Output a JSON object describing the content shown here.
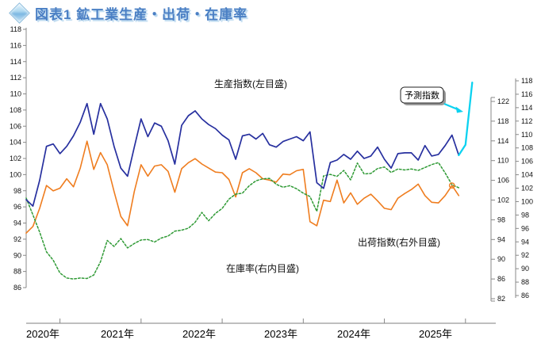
{
  "title": {
    "text": "図表1 鉱工業生産・出荷・在庫率",
    "icon": "diamond-icon"
  },
  "chart_data": {
    "type": "line",
    "title": "図表1 鉱工業生産・出荷・在庫率",
    "x_start_month": "2020-08",
    "x_tick_years": [
      "2020年",
      "2021年",
      "2022年",
      "2023年",
      "2024年",
      "2025年"
    ],
    "grid": false,
    "axes": {
      "left": {
        "min": 86,
        "max": 118,
        "step": 2,
        "used_by": "生産指数"
      },
      "right_inner": {
        "min": 82,
        "max": 122,
        "step": 4,
        "used_by": "在庫率"
      },
      "right_outer": {
        "min": 86,
        "max": 118,
        "step": 2,
        "used_by": "出荷指数"
      }
    },
    "series": [
      {
        "name": "生産指数(左目盛)",
        "axis": "left",
        "color": "#27309f",
        "line_style": "solid",
        "values": [
          96.9,
          96.1,
          99.3,
          103.5,
          103.8,
          102.6,
          103.5,
          104.8,
          106.5,
          108.8,
          105.0,
          108.8,
          106.9,
          103.5,
          100.8,
          99.8,
          103.4,
          106.9,
          104.7,
          106.4,
          106.0,
          104.2,
          101.3,
          106.1,
          107.3,
          107.9,
          106.9,
          106.2,
          105.7,
          104.9,
          104.3,
          101.9,
          104.8,
          105.0,
          104.4,
          105.1,
          103.7,
          103.4,
          104.1,
          104.4,
          104.7,
          104.2,
          105.3,
          99.0,
          98.3,
          101.5,
          101.8,
          102.5,
          101.9,
          102.9,
          102.0,
          102.3,
          103.4,
          101.9,
          100.8,
          102.6,
          102.7,
          102.7,
          101.8,
          103.6,
          102.3,
          102.5,
          103.6,
          104.9,
          102.4
        ]
      },
      {
        "name": "出荷指数(右外目盛)",
        "axis": "right_outer",
        "color": "#ef7d1f",
        "line_style": "solid",
        "end_marker": "open-circle",
        "values": [
          95.3,
          96.3,
          99.0,
          102.4,
          101.6,
          102.0,
          103.4,
          102.2,
          105.0,
          109.0,
          104.8,
          107.3,
          105.5,
          101.5,
          97.8,
          96.4,
          101.5,
          105.5,
          103.8,
          105.3,
          105.5,
          104.5,
          101.4,
          104.9,
          105.8,
          106.4,
          105.6,
          105.0,
          104.4,
          104.3,
          103.3,
          100.7,
          104.3,
          104.9,
          104.3,
          103.4,
          103.2,
          102.9,
          104.1,
          104.0,
          104.6,
          104.8,
          97.0,
          96.4,
          100.2,
          100.0,
          103.2,
          99.8,
          101.3,
          99.6,
          100.5,
          101.1,
          100.1,
          99.0,
          98.8,
          100.5,
          101.2,
          101.8,
          102.6,
          100.9,
          99.9,
          99.8,
          100.9,
          102.4,
          100.9
        ]
      },
      {
        "name": "在庫率(右内目盛)",
        "axis": "right_inner",
        "color": "#2f9a35",
        "line_style": "dotted",
        "values": [
          102.4,
          99.0,
          95.5,
          91.5,
          89.8,
          87.2,
          86.2,
          86.0,
          86.2,
          86.1,
          86.8,
          89.5,
          93.8,
          92.6,
          94.2,
          92.3,
          93.2,
          93.9,
          94.0,
          93.5,
          94.3,
          94.7,
          95.7,
          95.9,
          96.3,
          97.5,
          99.5,
          97.8,
          99.3,
          100.3,
          102.2,
          103.2,
          103.4,
          104.9,
          105.9,
          106.3,
          106.4,
          105.2,
          104.6,
          104.9,
          104.3,
          103.4,
          102.7,
          99.7,
          106.9,
          107.2,
          106.8,
          108.0,
          106.1,
          109.5,
          107.3,
          107.4,
          108.4,
          108.7,
          107.6,
          108.3,
          108.1,
          108.3,
          108.0,
          108.6,
          109.2,
          109.6,
          107.5,
          105.1,
          104.5
        ]
      },
      {
        "name": "予測指数",
        "axis": "left",
        "color": "#0cd2f0",
        "line_style": "solid",
        "months": [
          "2025-12",
          "2026-01",
          "2026-02"
        ],
        "values": [
          102.4,
          103.7,
          111.4
        ]
      }
    ],
    "annotations": {
      "production_label": "生産指数(左目盛)",
      "shipment_label": "出荷指数(右外目盛)",
      "inventory_label": "在庫率(右内目盛)",
      "forecast_box_label": "予測指数"
    }
  },
  "colors": {
    "production": "#27309f",
    "shipment": "#ef7d1f",
    "inventory": "#2f9a35",
    "forecast": "#0cd2f0",
    "axis": "#888888",
    "title_blue": "#4a7fc4"
  }
}
